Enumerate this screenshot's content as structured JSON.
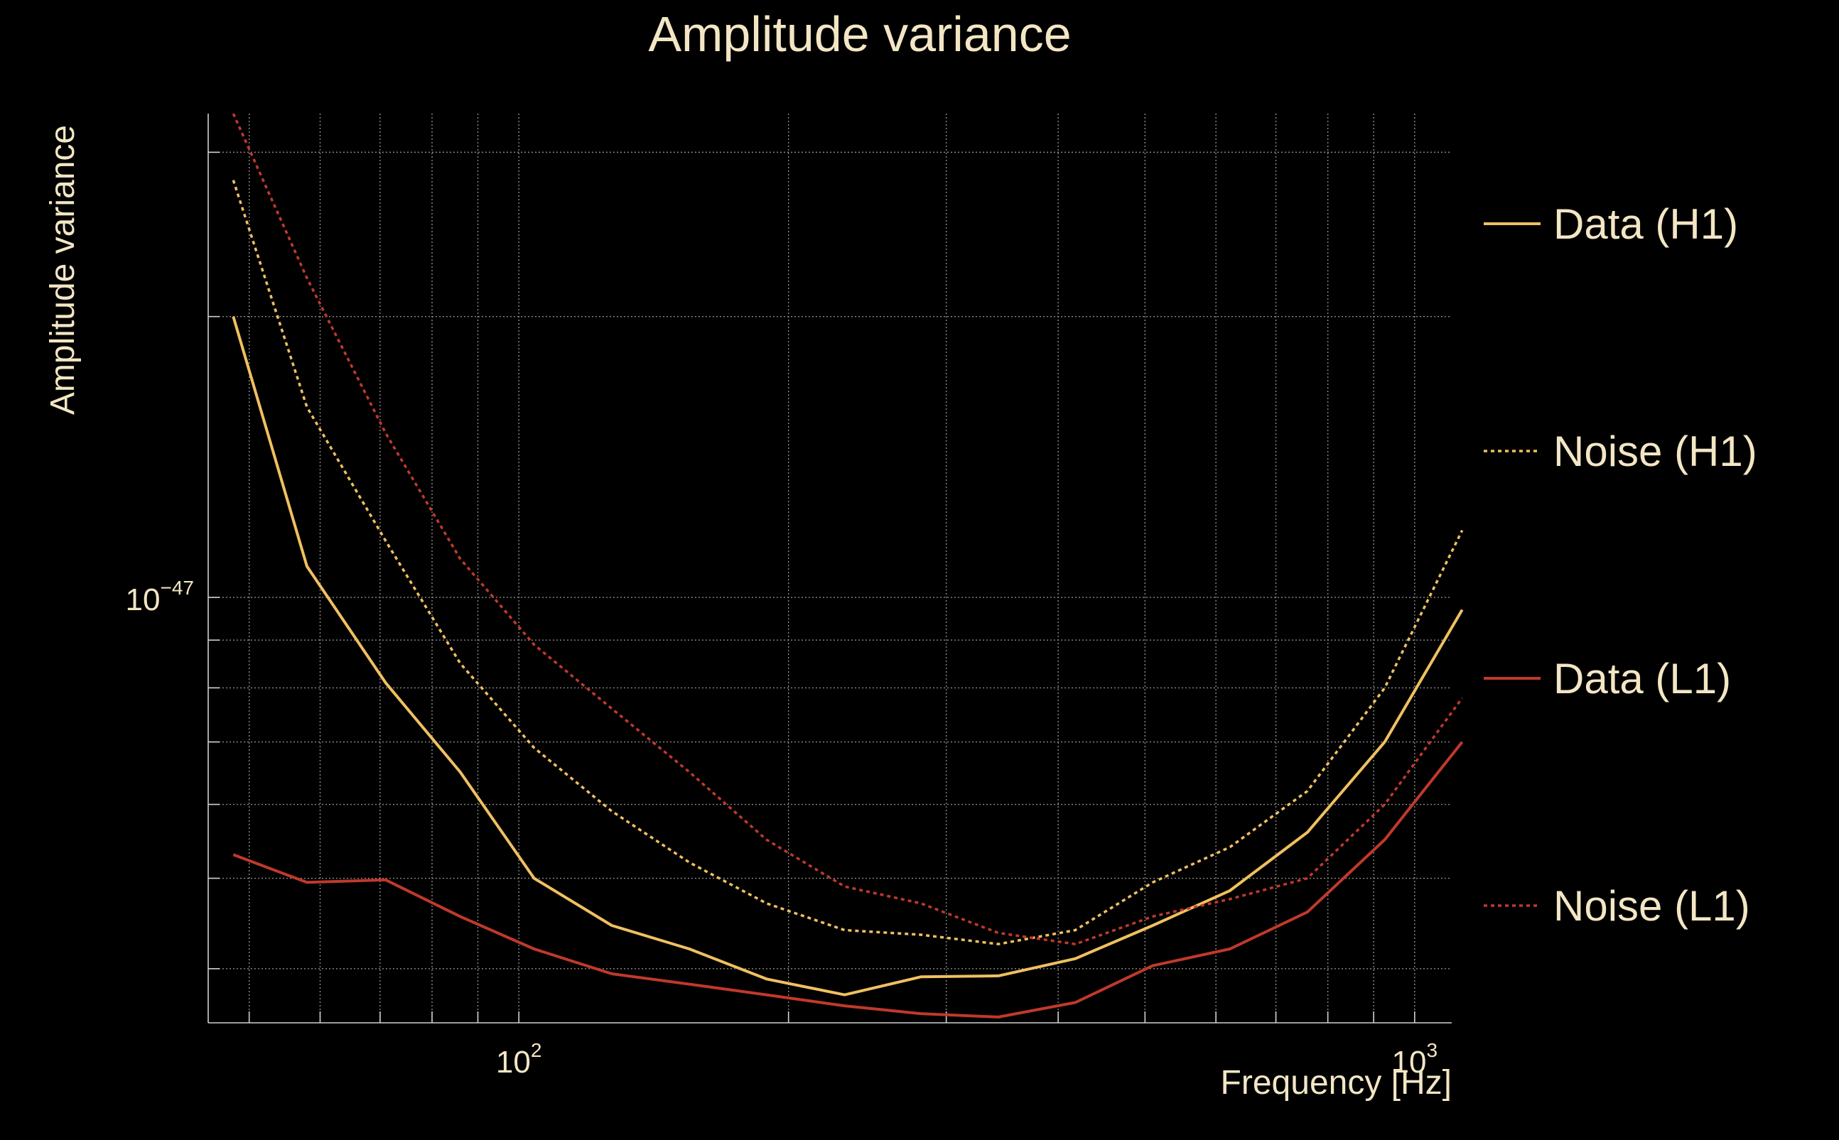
{
  "chart_data": {
    "type": "line",
    "title": "Amplitude variance",
    "xlabel": "Frequency [Hz]",
    "ylabel": "Amplitude variance",
    "x_scale": "log",
    "y_scale": "log",
    "xlim": [
      45,
      1100
    ],
    "ylim": [
      3.5e-48,
      3.3e-47
    ],
    "x_ticks": [
      {
        "value": 100,
        "base": "10",
        "exp": "2"
      },
      {
        "value": 1000,
        "base": "10",
        "exp": "3"
      }
    ],
    "y_ticks": [
      {
        "value": 1e-47,
        "base": "10",
        "exp": "−47"
      }
    ],
    "grid": true,
    "legend_position": "right",
    "x": [
      48,
      58,
      71,
      86,
      104,
      127,
      155,
      189,
      231,
      281,
      343,
      418,
      510,
      622,
      759,
      926,
      1130
    ],
    "series": [
      {
        "name": "Data (H1)",
        "color": "#f0c060",
        "style": "solid",
        "values": [
          2e-47,
          1.08e-47,
          8.1e-48,
          6.5e-48,
          5e-48,
          4.45e-48,
          4.2e-48,
          3.9e-48,
          3.75e-48,
          3.92e-48,
          3.93e-48,
          4.1e-48,
          4.45e-48,
          4.85e-48,
          5.6e-48,
          7e-48,
          9.7e-48
        ]
      },
      {
        "name": "Noise (H1)",
        "color": "#f0c060",
        "style": "dotted",
        "values": [
          2.8e-47,
          1.6e-47,
          1.15e-47,
          8.5e-48,
          6.9e-48,
          5.9e-48,
          5.2e-48,
          4.7e-48,
          4.4e-48,
          4.35e-48,
          4.25e-48,
          4.4e-48,
          4.95e-48,
          5.4e-48,
          6.2e-48,
          8e-48,
          1.18e-47
        ]
      },
      {
        "name": "Data (L1)",
        "color": "#c0392b",
        "style": "solid",
        "values": [
          5.3e-48,
          4.95e-48,
          4.98e-48,
          4.55e-48,
          4.2e-48,
          3.95e-48,
          3.85e-48,
          3.75e-48,
          3.65e-48,
          3.58e-48,
          3.55e-48,
          3.68e-48,
          4.03e-48,
          4.2e-48,
          4.6e-48,
          5.5e-48,
          7e-48
        ]
      },
      {
        "name": "Noise (L1)",
        "color": "#c0392b",
        "style": "dotted",
        "values": [
          3.3e-47,
          2.2e-47,
          1.5e-47,
          1.1e-47,
          8.9e-48,
          7.6e-48,
          6.5e-48,
          5.5e-48,
          4.9e-48,
          4.7e-48,
          4.37e-48,
          4.25e-48,
          4.55e-48,
          4.75e-48,
          5e-48,
          6e-48,
          7.8e-48
        ]
      }
    ]
  }
}
